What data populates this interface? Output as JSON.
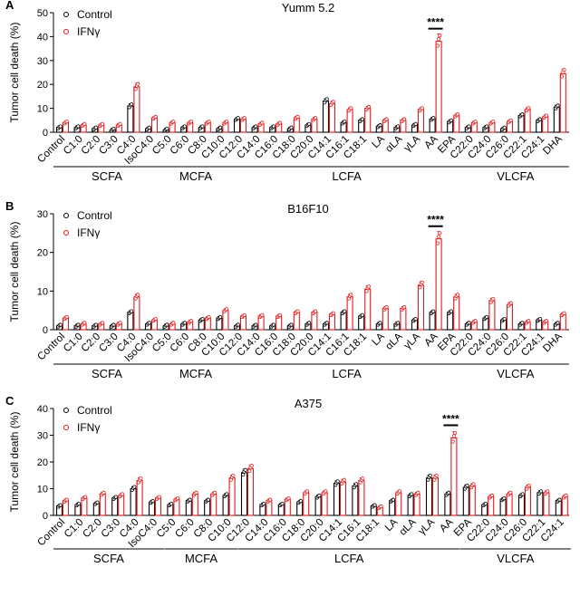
{
  "chart_data": [
    {
      "type": "bar",
      "panel_label": "A",
      "title": "Yumm 5.2",
      "ylabel": "Tumor cell death  (%)",
      "ylim": [
        0,
        50
      ],
      "yticks": [
        "0",
        "10",
        "20",
        "30",
        "40",
        "50"
      ],
      "categories": [
        "Control",
        "C1:0",
        "C2:0",
        "C3:0",
        "C4:0",
        "IsoC4:0",
        "C5:0",
        "C6:0",
        "C8:0",
        "C10:0",
        "C12:0",
        "C14:0",
        "C16:0",
        "C18:0",
        "C20:0",
        "C14:1",
        "C16:1",
        "C18:1",
        "LA",
        "αLA",
        "γLA",
        "AA",
        "EPA",
        "C22:0",
        "C24:0",
        "C26:0",
        "C22:1",
        "C24:1",
        "DHA"
      ],
      "series": [
        {
          "name": "Control",
          "color": "#000000",
          "values": [
            2,
            2,
            1.5,
            1,
            11,
            1.5,
            1,
            2,
            2,
            1.5,
            5.5,
            2,
            2,
            1.5,
            3,
            13,
            4,
            5,
            2.5,
            2,
            3,
            5.5,
            4.5,
            2,
            2,
            1.5,
            7,
            5,
            10.5
          ]
        },
        {
          "name": "IFNγ",
          "color": "#e41a1c",
          "values": [
            4,
            3,
            3,
            3,
            19,
            6,
            4,
            4,
            4,
            4,
            5.5,
            3.5,
            3.5,
            6,
            5.5,
            12,
            9.5,
            10,
            5,
            5,
            9.5,
            38,
            7,
            4,
            4,
            4.5,
            9.5,
            6.5,
            24.5
          ]
        }
      ],
      "groups": [
        {
          "label": "SCFA",
          "from": 0,
          "to": 5
        },
        {
          "label": "MCFA",
          "from": 6,
          "to": 9
        },
        {
          "label": "LCFA",
          "from": 10,
          "to": 22
        },
        {
          "label": "VLCFA",
          "from": 23,
          "to": 28
        }
      ],
      "significance": {
        "label": "****",
        "category": "AA"
      }
    },
    {
      "type": "bar",
      "panel_label": "B",
      "title": "B16F10",
      "ylabel": "Tumor cell death  (%)",
      "ylim": [
        0,
        30
      ],
      "yticks": [
        "0",
        "10",
        "20",
        "30"
      ],
      "categories": [
        "Control",
        "C1:0",
        "C2:0",
        "C3:0",
        "C4:0",
        "IsoC4:0",
        "C5:0",
        "C6:0",
        "C8:0",
        "C10:0",
        "C12:0",
        "C14:0",
        "C16:0",
        "C18:0",
        "C20:0",
        "C14:1",
        "C16:1",
        "C18:1",
        "LA",
        "αLA",
        "γLA",
        "AA",
        "EPA",
        "C22:0",
        "C24:0",
        "C26:0",
        "C22:1",
        "C24:1",
        "DHA"
      ],
      "series": [
        {
          "name": "Control",
          "color": "#000000",
          "values": [
            1,
            1,
            1,
            1,
            4.5,
            1.5,
            1,
            1.5,
            2.5,
            3,
            1,
            1,
            1,
            1,
            1.5,
            1.5,
            4.5,
            3.5,
            1.5,
            1.5,
            2.5,
            4.5,
            4.5,
            1.5,
            3,
            2.5,
            1.5,
            2.5,
            1.5
          ]
        },
        {
          "name": "IFNγ",
          "color": "#e41a1c",
          "values": [
            3,
            1.5,
            1.5,
            1.5,
            8.5,
            2.5,
            1.5,
            2,
            3,
            5,
            3.5,
            3.5,
            3.5,
            4.5,
            4.5,
            4,
            8.5,
            10.5,
            5.5,
            5.5,
            11.5,
            23.5,
            8.5,
            2,
            7.5,
            6.5,
            2,
            2,
            4
          ]
        }
      ],
      "groups": [
        {
          "label": "SCFA",
          "from": 0,
          "to": 5
        },
        {
          "label": "MCFA",
          "from": 6,
          "to": 9
        },
        {
          "label": "LCFA",
          "from": 10,
          "to": 22
        },
        {
          "label": "VLCFA",
          "from": 23,
          "to": 28
        }
      ],
      "significance": {
        "label": "****",
        "category": "AA"
      }
    },
    {
      "type": "bar",
      "panel_label": "C",
      "title": "A375",
      "ylabel": "Tumor cell death  (%)",
      "ylim": [
        0,
        40
      ],
      "yticks": [
        "0",
        "10",
        "20",
        "30",
        "40"
      ],
      "categories": [
        "Control",
        "C1:0",
        "C2:0",
        "C3:0",
        "C4:0",
        "IsoC4:0",
        "C5:0",
        "C6:0",
        "C8:0",
        "C10:0",
        "C12:0",
        "C14:0",
        "C16:0",
        "C18:0",
        "C20:0",
        "C14:1",
        "C16:1",
        "C18:1",
        "LA",
        "αLA",
        "γLA",
        "AA",
        "EPA",
        "C22:0",
        "C24:0",
        "C26:0",
        "C22:1",
        "C24:1"
      ],
      "series": [
        {
          "name": "Control",
          "color": "#000000",
          "values": [
            3.5,
            4,
            4.5,
            6.5,
            10,
            5,
            4,
            5.5,
            5.5,
            7.5,
            16,
            4,
            4,
            5,
            7,
            12,
            11,
            3.5,
            5.5,
            7.5,
            14,
            8,
            10.5,
            4,
            6,
            7.5,
            8.5,
            5.5
          ]
        },
        {
          "name": "IFNγ",
          "color": "#e41a1c",
          "values": [
            5.5,
            6.5,
            8,
            7.5,
            13,
            6.5,
            6,
            8,
            8,
            14,
            17.5,
            5.5,
            6,
            8.5,
            8.5,
            12.5,
            13,
            3,
            8.5,
            8,
            14,
            29,
            11,
            7,
            8,
            10.5,
            8.5,
            7
          ]
        }
      ],
      "groups": [
        {
          "label": "SCFA",
          "from": 0,
          "to": 5
        },
        {
          "label": "MCFA",
          "from": 6,
          "to": 9
        },
        {
          "label": "LCFA",
          "from": 10,
          "to": 21
        },
        {
          "label": "VLCFA",
          "from": 22,
          "to": 27
        }
      ],
      "significance": {
        "label": "****",
        "category": "AA"
      }
    }
  ]
}
